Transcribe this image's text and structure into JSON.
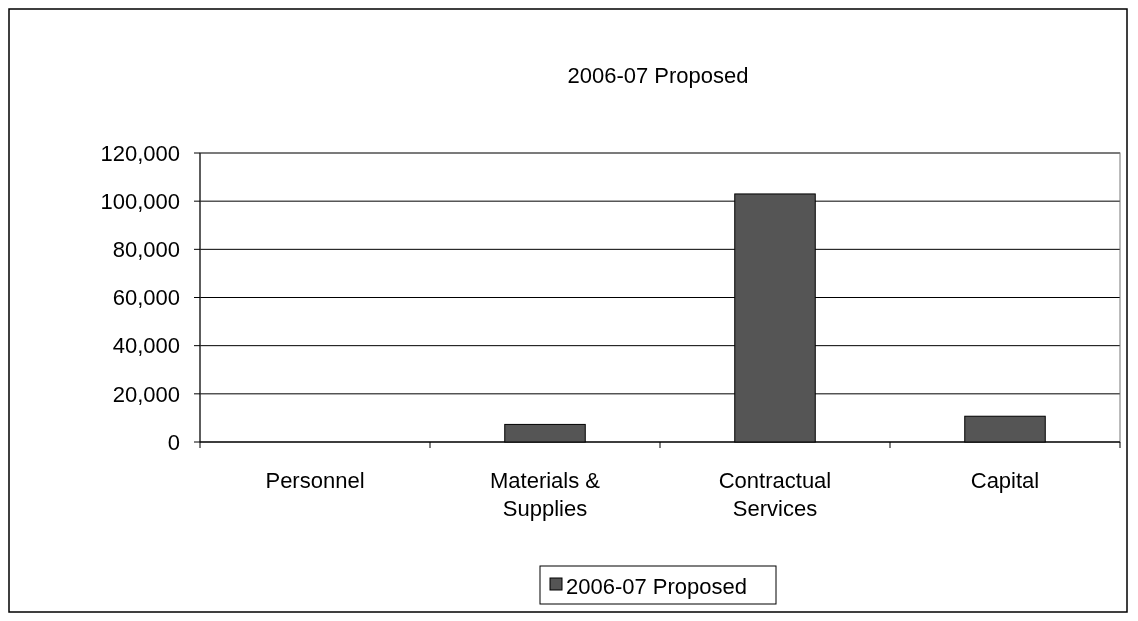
{
  "chart_data": {
    "type": "bar",
    "title": "2006-07 Proposed",
    "categories": [
      "Personnel",
      "Materials & Supplies",
      "Contractual Services",
      "Capital"
    ],
    "series": [
      {
        "name": "2006-07 Proposed",
        "color": "#555555",
        "values": [
          0,
          7300,
          103000,
          10700
        ]
      }
    ],
    "ylim": [
      0,
      120000
    ],
    "yticks": [
      {
        "value": 0,
        "label": "0"
      },
      {
        "value": 20000,
        "label": "20,000"
      },
      {
        "value": 40000,
        "label": "40,000"
      },
      {
        "value": 60000,
        "label": "60,000"
      },
      {
        "value": 80000,
        "label": "80,000"
      },
      {
        "value": 100000,
        "label": "100,000"
      },
      {
        "value": 120000,
        "label": "120,000"
      }
    ],
    "grid": "y",
    "legend": "bottom"
  }
}
